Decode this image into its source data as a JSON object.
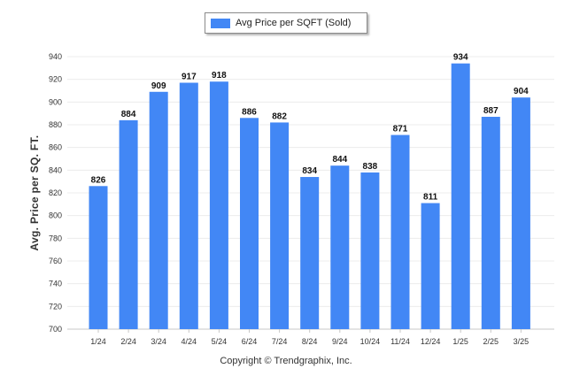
{
  "legend": {
    "label": "Avg Price per SQFT (Sold)"
  },
  "copyright": "Copyright © Trendgraphix, Inc.",
  "chart_data": {
    "type": "bar",
    "categories": [
      "1/24",
      "2/24",
      "3/24",
      "4/24",
      "5/24",
      "6/24",
      "7/24",
      "8/24",
      "9/24",
      "10/24",
      "11/24",
      "12/24",
      "1/25",
      "2/25",
      "3/25"
    ],
    "series": [
      {
        "name": "Avg Price per SQFT (Sold)",
        "values": [
          826,
          884,
          909,
          917,
          918,
          886,
          882,
          834,
          844,
          838,
          871,
          811,
          934,
          887,
          904
        ]
      }
    ],
    "ylabel": "Avg. Price per SQ. FT.",
    "xlabel": "",
    "ylim": [
      700,
      940
    ],
    "yticks": [
      700,
      720,
      740,
      760,
      780,
      800,
      820,
      840,
      860,
      880,
      900,
      920,
      940
    ],
    "grid": true,
    "legend_position": "top-center",
    "bar_color": "#4287f5",
    "data_labels": true
  }
}
